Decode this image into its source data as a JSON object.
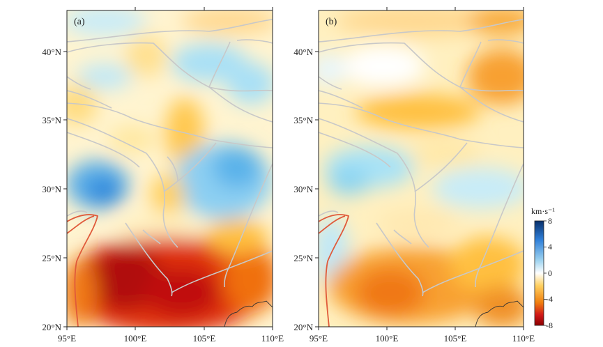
{
  "panels": [
    {
      "label": "(a)"
    },
    {
      "label": "(b)"
    }
  ],
  "map": {
    "lon_range": [
      95,
      110
    ],
    "lat_range": [
      20,
      43
    ],
    "x_ticks": [
      "95°E",
      "100°E",
      "105°E",
      "110°E"
    ],
    "y_ticks": [
      "40°N",
      "35°N",
      "30°N",
      "25°N",
      "20°N"
    ]
  },
  "colorbar": {
    "unit": "km·s⁻¹",
    "ticks": [
      "8",
      "4",
      "0",
      "-4",
      "-8"
    ],
    "range": [
      -8,
      8
    ],
    "colors": [
      "#08306b",
      "#2f7fd8",
      "#9fd4f0",
      "#ffffff",
      "#ffd060",
      "#f08010",
      "#d01818",
      "#8b0000"
    ]
  },
  "colors": {
    "faults": "#c8c8c8",
    "boundary": "#e05a3a",
    "coastline": "#333333"
  }
}
